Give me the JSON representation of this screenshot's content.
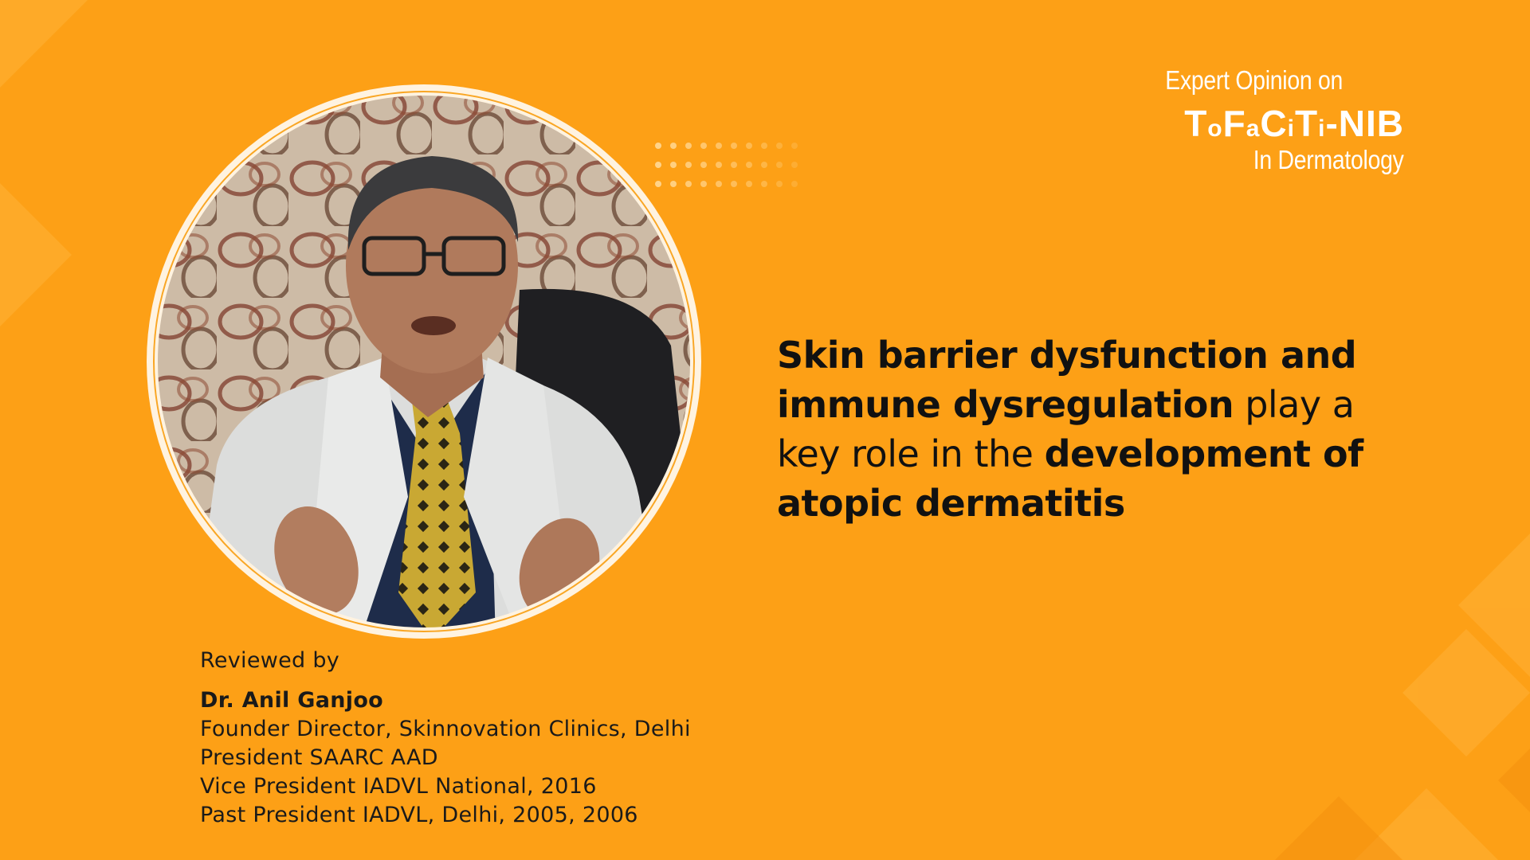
{
  "brand": {
    "eyebrow": "Expert Opinion on",
    "logo": {
      "parts": [
        "T",
        "o",
        "F",
        "a",
        "C",
        "i",
        "T",
        "i",
        "-NIB"
      ]
    },
    "tagline": "In Dermatology"
  },
  "headline": {
    "segments": [
      {
        "text": "Skin barrier dysfunction and immune dysregulation",
        "bold": true
      },
      {
        "text": " play a key role in the ",
        "bold": false
      },
      {
        "text": "development of atopic dermatitis",
        "bold": true
      }
    ]
  },
  "reviewer": {
    "label": "Reviewed by",
    "name": "Dr. Anil Ganjoo",
    "titles": [
      "Founder Director, Skinnovation Clinics, Delhi",
      "President SAARC AAD",
      "Vice President IADVL National, 2016",
      "Past President IADVL, Delhi, 2005, 2006"
    ]
  },
  "photo": {
    "subject": "doctor-portrait"
  },
  "colors": {
    "background": "#FDA016",
    "ring": "#FFF3E0",
    "text_dark": "#111111",
    "text_light": "#FFFFFF"
  }
}
